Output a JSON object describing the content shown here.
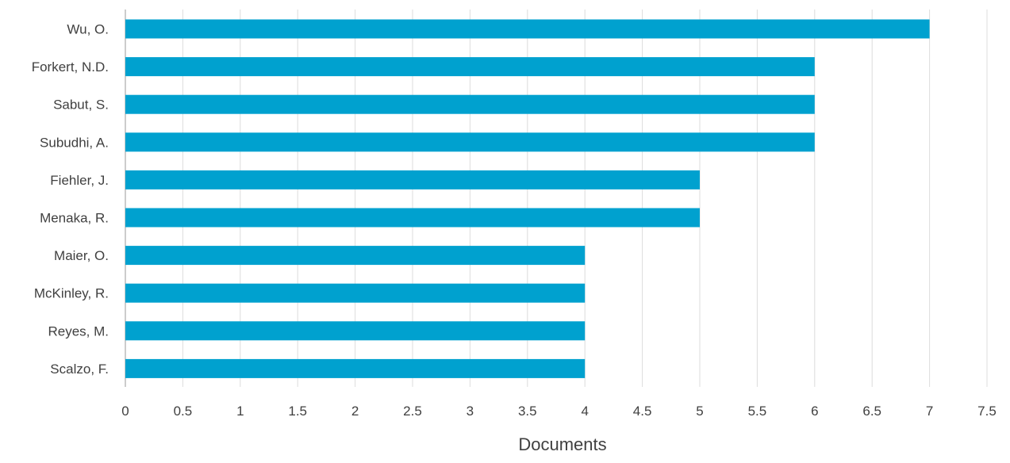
{
  "chart_data": {
    "type": "bar",
    "orientation": "horizontal",
    "categories": [
      "Wu, O.",
      "Forkert, N.D.",
      "Sabut, S.",
      "Subudhi, A.",
      "Fiehler, J.",
      "Menaka, R.",
      "Maier, O.",
      "McKinley, R.",
      "Reyes, M.",
      "Scalzo, F."
    ],
    "values": [
      7,
      6,
      6,
      6,
      5,
      5,
      4,
      4,
      4,
      4
    ],
    "xlabel": "Documents",
    "ylabel": "",
    "title": "",
    "xlim": [
      0,
      7.5
    ],
    "xticks": [
      "0",
      "0.5",
      "1",
      "1.5",
      "2",
      "2.5",
      "3",
      "3.5",
      "4",
      "4.5",
      "5",
      "5.5",
      "6",
      "6.5",
      "7",
      "7.5"
    ],
    "grid": "vertical",
    "bar_color": "#00a1cf"
  }
}
